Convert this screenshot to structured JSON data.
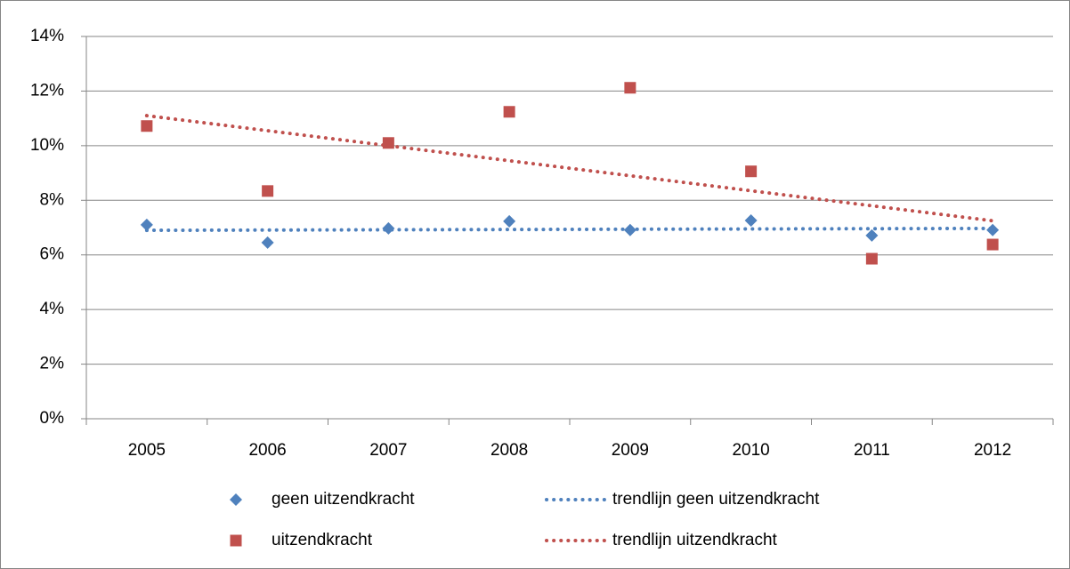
{
  "chart_data": {
    "type": "scatter",
    "categories": [
      "2005",
      "2006",
      "2007",
      "2008",
      "2009",
      "2010",
      "2011",
      "2012"
    ],
    "ylim": [
      0,
      14
    ],
    "yticks": [
      {
        "value": 0,
        "label": "0%"
      },
      {
        "value": 2,
        "label": "2%"
      },
      {
        "value": 4,
        "label": "4%"
      },
      {
        "value": 6,
        "label": "6%"
      },
      {
        "value": 8,
        "label": "8%"
      },
      {
        "value": 10,
        "label": "10%"
      },
      {
        "value": 12,
        "label": "12%"
      },
      {
        "value": 14,
        "label": "14%"
      }
    ],
    "grid": true,
    "legend": "bottom",
    "series": [
      {
        "name": "geen uitzendkracht",
        "color": "#4f81bd",
        "style": "marker",
        "marker": "diamond",
        "values": [
          7.1,
          6.45,
          6.97,
          7.23,
          6.91,
          7.26,
          6.71,
          6.91
        ]
      },
      {
        "name": "uitzendkracht",
        "color": "#c0504d",
        "style": "marker",
        "marker": "square",
        "values": [
          10.72,
          8.34,
          10.1,
          11.24,
          12.12,
          9.06,
          5.86,
          6.38
        ]
      },
      {
        "name": "trendlijn geen uitzendkracht",
        "color": "#4f81bd",
        "style": "dotted",
        "values": [
          6.9,
          6.91,
          6.92,
          6.93,
          6.94,
          6.95,
          6.96,
          6.97
        ]
      },
      {
        "name": "trendlijn uitzendkracht",
        "color": "#c0504d",
        "style": "dotted",
        "values": [
          11.1,
          10.55,
          10.0,
          9.45,
          8.9,
          8.35,
          7.8,
          7.25
        ]
      }
    ]
  }
}
